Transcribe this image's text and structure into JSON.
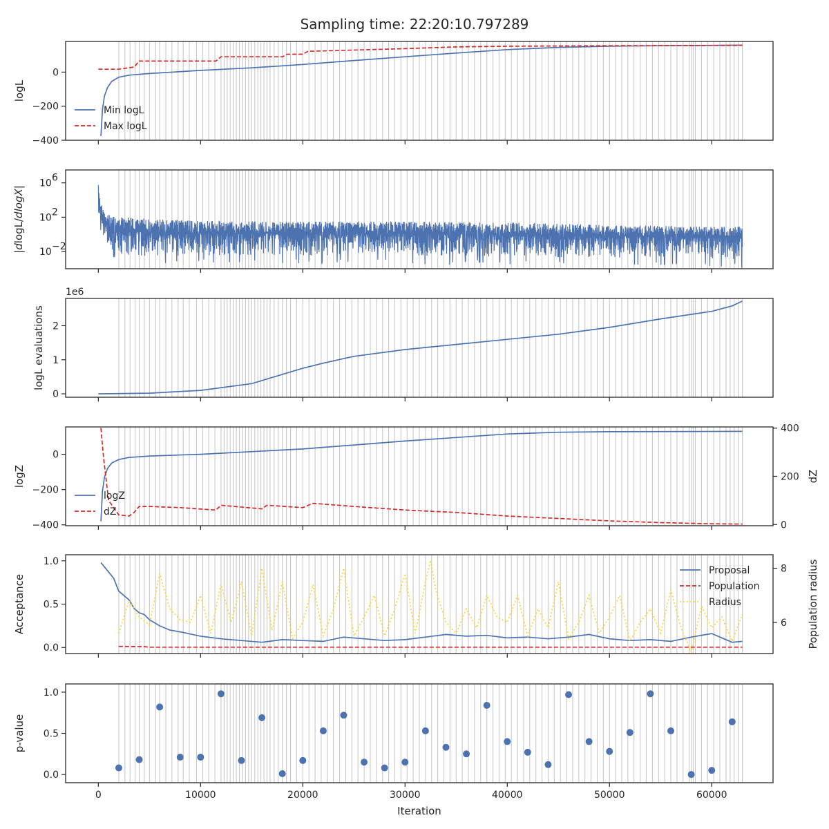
{
  "title": "Sampling time: 22:20:10.797289",
  "colors": {
    "blue": "#4c72b0",
    "red": "#d62728",
    "gold": "#ffd43b",
    "vline": "#c8c8c8",
    "axis": "#262626"
  },
  "x_axis": {
    "label": "Iteration",
    "ticks": [
      0,
      10000,
      20000,
      30000,
      40000,
      50000,
      60000
    ],
    "tick_labels": [
      "0",
      "10000",
      "20000",
      "30000",
      "40000",
      "50000",
      "60000"
    ],
    "xlim": [
      -3200,
      66000
    ]
  },
  "chart_data": [
    {
      "type": "line",
      "ylabel": "logL",
      "ylim": [
        -400,
        180
      ],
      "yticks": [
        -400,
        -200,
        0
      ],
      "ytick_labels": [
        "−400",
        "−200",
        "0"
      ],
      "legend": {
        "position": "lower-left",
        "entries": [
          "Min logL",
          "Max logL"
        ]
      },
      "series": [
        {
          "name": "Min logL",
          "style": "solid",
          "color": "blue",
          "x": [
            250,
            400,
            600,
            900,
            1300,
            2000,
            3000,
            5000,
            10000,
            15000,
            20000,
            25000,
            30000,
            35000,
            40000,
            45000,
            50000,
            55000,
            60000,
            63000
          ],
          "y": [
            -375,
            -220,
            -140,
            -90,
            -55,
            -30,
            -18,
            -8,
            10,
            25,
            45,
            68,
            90,
            112,
            132,
            145,
            152,
            155,
            157,
            158
          ]
        },
        {
          "name": "Max logL",
          "style": "dashed",
          "color": "red",
          "x": [
            0,
            2000,
            3500,
            4000,
            11500,
            12000,
            18000,
            18500,
            20000,
            20500,
            30000,
            35000,
            40000,
            50000,
            63000
          ],
          "y": [
            17,
            17,
            30,
            65,
            65,
            90,
            90,
            105,
            105,
            122,
            138,
            148,
            152,
            155,
            157
          ]
        }
      ]
    },
    {
      "type": "line",
      "ylabel": "|dlogL/dlogX|",
      "yscale": "log",
      "ylim_log10": [
        -4,
        7.5
      ],
      "yticks_log10": [
        -2,
        2,
        6
      ],
      "ytick_labels": [
        "10",
        "10",
        "10"
      ],
      "ytick_exponents": [
        "−2",
        "2",
        "6"
      ],
      "series": [
        {
          "name": "",
          "color": "blue",
          "style": "noisy-envelope",
          "x": [
            0,
            200,
            500,
            1000,
            2000,
            5000,
            10000,
            20000,
            30000,
            40000,
            50000,
            60000,
            63000
          ],
          "upper_log10": [
            6.3,
            4,
            2.7,
            2.3,
            2.1,
            1.8,
            1.6,
            1.5,
            1.5,
            1.4,
            1.1,
            0.9,
            0.9
          ],
          "lower_log10": [
            3,
            0.2,
            -0.8,
            -1.8,
            -2.3,
            -2.6,
            -2.5,
            -2.5,
            -2.5,
            -2.6,
            -2.7,
            -2.8,
            -2.9
          ]
        }
      ]
    },
    {
      "type": "line",
      "ylabel": "logL evaluations",
      "offset_label": "1e6",
      "ylim": [
        -0.1,
        2.8
      ],
      "yticks": [
        0,
        1,
        2
      ],
      "ytick_labels": [
        "0",
        "1",
        "2"
      ],
      "series": [
        {
          "name": "",
          "color": "blue",
          "style": "solid",
          "x": [
            0,
            5000,
            10000,
            15000,
            20000,
            22000,
            25000,
            30000,
            35000,
            40000,
            45000,
            50000,
            55000,
            60000,
            62000,
            63000
          ],
          "y": [
            0,
            0.02,
            0.1,
            0.3,
            0.75,
            0.9,
            1.1,
            1.3,
            1.45,
            1.6,
            1.75,
            1.95,
            2.2,
            2.42,
            2.58,
            2.72
          ]
        }
      ]
    },
    {
      "type": "line",
      "ylabel": "logZ",
      "ylabel_right": "dZ",
      "ylim": [
        -405,
        155
      ],
      "yticks": [
        -400,
        -200,
        0
      ],
      "ytick_labels": [
        "−400",
        "−200",
        "0"
      ],
      "ylim_right": [
        -5,
        405
      ],
      "yticks_right": [
        0,
        200,
        400
      ],
      "ytick_labels_right": [
        "0",
        "200",
        "400"
      ],
      "legend": {
        "position": "lower-left",
        "entries": [
          "logZ",
          "dZ"
        ]
      },
      "series": [
        {
          "name": "logZ",
          "style": "solid",
          "color": "blue",
          "axis": "left",
          "x": [
            250,
            400,
            600,
            900,
            1300,
            2000,
            3000,
            5000,
            10000,
            20000,
            30000,
            40000,
            45000,
            50000,
            63000
          ],
          "y": [
            -380,
            -210,
            -130,
            -80,
            -50,
            -30,
            -18,
            -10,
            0,
            30,
            75,
            115,
            125,
            128,
            130
          ]
        },
        {
          "name": "dZ",
          "style": "dashed",
          "color": "red",
          "axis": "right",
          "x": [
            250,
            500,
            1000,
            2000,
            3000,
            3500,
            4000,
            5000,
            8000,
            11500,
            12000,
            16000,
            16500,
            20000,
            21000,
            25000,
            30000,
            35000,
            40000,
            45000,
            50000,
            55000,
            60000,
            63000
          ],
          "y": [
            400,
            280,
            100,
            40,
            35,
            50,
            75,
            75,
            70,
            60,
            80,
            65,
            80,
            70,
            88,
            75,
            60,
            50,
            35,
            25,
            15,
            8,
            3,
            2
          ]
        }
      ]
    },
    {
      "type": "line",
      "ylabel": "Acceptance",
      "ylabel_right": "Population radius",
      "ylim": [
        -0.07,
        1.07
      ],
      "yticks": [
        0,
        0.5,
        1
      ],
      "ytick_labels": [
        "0.0",
        "0.5",
        "1.0"
      ],
      "ylim_right": [
        4.85,
        8.5
      ],
      "yticks_right": [
        6,
        8
      ],
      "ytick_labels_right": [
        "6",
        "8"
      ],
      "legend": {
        "position": "upper-right",
        "entries": [
          "Proposal",
          "Population",
          "Radius"
        ]
      },
      "series": [
        {
          "name": "Proposal",
          "style": "solid",
          "color": "blue",
          "axis": "left",
          "x": [
            250,
            800,
            1500,
            2000,
            2500,
            3000,
            3500,
            4000,
            4500,
            5000,
            6000,
            7000,
            8000,
            10000,
            12000,
            14000,
            16000,
            18000,
            20000,
            22000,
            24000,
            26000,
            28000,
            30000,
            32000,
            34000,
            36000,
            38000,
            40000,
            42000,
            44000,
            46000,
            48000,
            50000,
            52000,
            54000,
            56000,
            58000,
            60000,
            62000,
            63000
          ],
          "y": [
            0.98,
            0.9,
            0.8,
            0.65,
            0.6,
            0.55,
            0.45,
            0.4,
            0.38,
            0.32,
            0.25,
            0.2,
            0.18,
            0.13,
            0.1,
            0.08,
            0.06,
            0.09,
            0.08,
            0.07,
            0.12,
            0.1,
            0.08,
            0.09,
            0.12,
            0.15,
            0.13,
            0.14,
            0.11,
            0.12,
            0.1,
            0.12,
            0.15,
            0.1,
            0.08,
            0.09,
            0.07,
            0.12,
            0.16,
            0.06,
            0.07
          ]
        },
        {
          "name": "Population",
          "style": "dashed",
          "color": "red",
          "axis": "left",
          "x": [
            2000,
            4500,
            5000,
            63000
          ],
          "y": [
            0.012,
            0.01,
            0.003,
            0.003
          ]
        },
        {
          "name": "Radius",
          "style": "dotted",
          "color": "gold",
          "axis": "right",
          "x": [
            2000,
            3000,
            4000,
            5000,
            6000,
            7000,
            8000,
            9000,
            10000,
            11000,
            12000,
            13000,
            14000,
            15000,
            16000,
            17000,
            18000,
            19000,
            20000,
            21000,
            22000,
            23000,
            24000,
            25000,
            26000,
            27000,
            28000,
            29000,
            30000,
            31000,
            32000,
            32500,
            33000,
            34000,
            35000,
            36000,
            37000,
            38000,
            39000,
            40000,
            41000,
            42000,
            43000,
            44000,
            45000,
            46000,
            47000,
            48000,
            49000,
            50000,
            51000,
            52000,
            53000,
            54000,
            55000,
            56000,
            57000,
            58000,
            59000,
            60000,
            61000,
            62000,
            63000
          ],
          "y": [
            5.6,
            6.8,
            6.2,
            5.9,
            7.8,
            6.5,
            6.1,
            6.0,
            7.0,
            5.6,
            7.4,
            6.0,
            7.5,
            5.5,
            8.0,
            5.7,
            7.5,
            5.4,
            6.0,
            7.4,
            5.5,
            6.5,
            8.0,
            5.5,
            6.2,
            7.0,
            5.5,
            6.5,
            7.8,
            5.6,
            7.5,
            8.3,
            7.2,
            6.0,
            5.6,
            6.5,
            5.8,
            7.0,
            6.2,
            6.0,
            7.0,
            5.5,
            6.5,
            5.8,
            7.5,
            5.4,
            6.0,
            7.0,
            5.6,
            6.2,
            7.0,
            5.3,
            6.0,
            6.5,
            5.6,
            7.2,
            5.8,
            4.9,
            6.6,
            5.8,
            6.2,
            5.3,
            6.3
          ]
        }
      ]
    },
    {
      "type": "scatter",
      "ylabel": "p-value",
      "ylim": [
        -0.1,
        1.1
      ],
      "yticks": [
        0,
        0.5,
        1
      ],
      "ytick_labels": [
        "0.0",
        "0.5",
        "1.0"
      ],
      "series": [
        {
          "name": "",
          "color": "blue",
          "x": [
            2000,
            4000,
            6000,
            8000,
            10000,
            12000,
            14000,
            16000,
            18000,
            20000,
            22000,
            24000,
            26000,
            28000,
            30000,
            32000,
            34000,
            36000,
            38000,
            40000,
            42000,
            44000,
            46000,
            48000,
            50000,
            52000,
            54000,
            56000,
            58000,
            60000,
            62000
          ],
          "y": [
            0.08,
            0.18,
            0.82,
            0.21,
            0.21,
            0.98,
            0.17,
            0.69,
            0.01,
            0.17,
            0.53,
            0.72,
            0.15,
            0.08,
            0.15,
            0.53,
            0.33,
            0.25,
            0.84,
            0.4,
            0.27,
            0.12,
            0.97,
            0.4,
            0.28,
            0.51,
            0.98,
            0.53,
            0.0,
            0.05,
            0.64
          ]
        }
      ]
    }
  ],
  "vertical_lines_x": [
    2000,
    2600,
    3100,
    3600,
    4000,
    4500,
    5000,
    5600,
    6000,
    6600,
    7200,
    7800,
    8300,
    8900,
    9600,
    10200,
    10800,
    11400,
    12000,
    12300,
    12600,
    12900,
    13200,
    13500,
    13800,
    14100,
    14400,
    14700,
    15000,
    15300,
    15600,
    15900,
    16200,
    16500,
    16800,
    17200,
    17600,
    18000,
    18400,
    18800,
    19400,
    20000,
    20600,
    21200,
    21800,
    22400,
    23000,
    23600,
    24200,
    24800,
    25400,
    26000,
    26600,
    27200,
    27800,
    28400,
    29000,
    29600,
    30200,
    30800,
    31400,
    32000,
    32600,
    33200,
    33800,
    34400,
    35000,
    35600,
    36200,
    36800,
    37400,
    38000,
    38600,
    39200,
    39800,
    40400,
    41000,
    41600,
    42200,
    42800,
    43400,
    44000,
    44600,
    45200,
    45800,
    46400,
    47000,
    47600,
    48200,
    48800,
    49400,
    50000,
    50600,
    51200,
    51800,
    52400,
    53000,
    53600,
    54200,
    54800,
    55400,
    56000,
    56600,
    57200,
    57800,
    58000,
    58200,
    58400,
    59000,
    59600,
    60200,
    60800,
    61400,
    61800,
    62200,
    62600,
    63000
  ]
}
